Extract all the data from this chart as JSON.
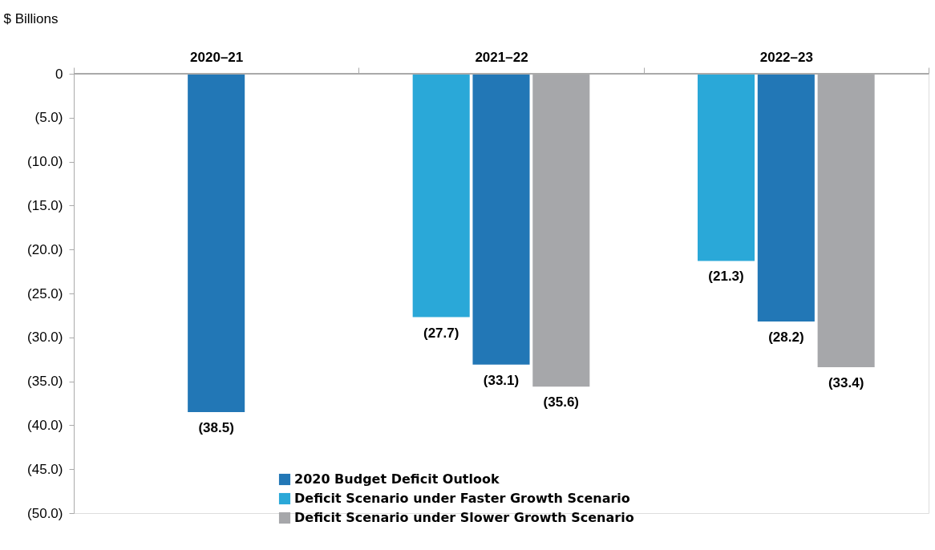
{
  "chart_data": {
    "type": "bar",
    "ylabel": "$ Billions",
    "categories": [
      "2020–21",
      "2021–22",
      "2022–23"
    ],
    "series": [
      {
        "name": "2020 Budget Deficit Outlook",
        "color": "#2277b6",
        "values": [
          -38.5,
          -33.1,
          -28.2
        ],
        "value_labels": [
          "(38.5)",
          "(33.1)",
          "(28.2)"
        ]
      },
      {
        "name": "Deficit Scenario under Faster Growth Scenario",
        "color": "#2aa8d8",
        "values": [
          null,
          -27.7,
          -21.3
        ],
        "value_labels": [
          null,
          "(27.7)",
          "(21.3)"
        ]
      },
      {
        "name": "Deficit Scenario under Slower Growth Scenario",
        "color": "#a6a7aa",
        "values": [
          null,
          -35.6,
          -33.4
        ],
        "value_labels": [
          null,
          "(35.6)",
          "(33.4)"
        ]
      }
    ],
    "ylim": [
      -50,
      0
    ],
    "yticks": [
      0,
      {
        "value": -5,
        "label": "(5.0)"
      },
      {
        "value": -10,
        "label": "(10.0)"
      },
      {
        "value": -15,
        "label": "(15.0)"
      },
      {
        "value": -20,
        "label": "(20.0)"
      },
      {
        "value": -25,
        "label": "(25.0)"
      },
      {
        "value": -30,
        "label": "(30.0)"
      },
      {
        "value": -35,
        "label": "(35.0)"
      },
      {
        "value": -40,
        "label": "(40.0)"
      },
      {
        "value": -45,
        "label": "(45.0)"
      },
      {
        "value": -50,
        "label": "(50.0)"
      }
    ],
    "grid": false,
    "legend": "bottom"
  }
}
